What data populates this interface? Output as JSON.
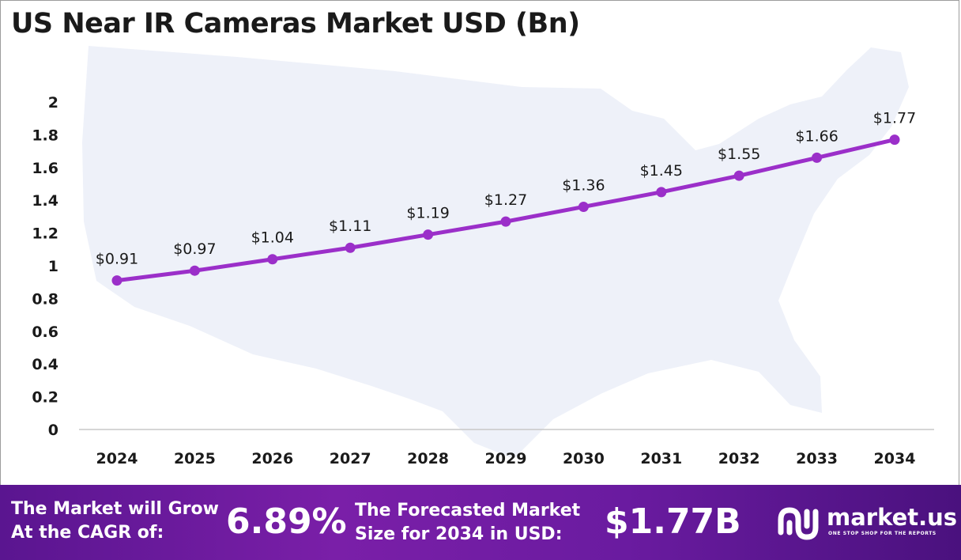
{
  "chart_data": {
    "type": "line",
    "title": "US Near IR Cameras Market USD (Bn)",
    "x": [
      "2024",
      "2025",
      "2026",
      "2027",
      "2028",
      "2029",
      "2030",
      "2031",
      "2032",
      "2033",
      "2034"
    ],
    "series": [
      {
        "values": [
          0.91,
          0.97,
          1.04,
          1.11,
          1.19,
          1.27,
          1.36,
          1.45,
          1.55,
          1.66,
          1.77
        ],
        "data_labels": [
          "$0.91",
          "$0.97",
          "$1.04",
          "$1.11",
          "$1.19",
          "$1.27",
          "$1.36",
          "$1.45",
          "$1.55",
          "$1.66",
          "$1.77"
        ],
        "color": "#9b2fc9"
      }
    ],
    "ylim": [
      0,
      2
    ],
    "yticks": [
      "0",
      "0.2",
      "0.4",
      "0.6",
      "0.8",
      "1",
      "1.2",
      "1.4",
      "1.6",
      "1.8",
      "2"
    ],
    "grid": false,
    "background": "faint US map silhouette"
  },
  "footer": {
    "cagr_text_line1": "The Market will Grow",
    "cagr_text_line2": "At the CAGR of:",
    "cagr_value": "6.89%",
    "forecast_text_line1": "The Forecasted Market",
    "forecast_text_line2": "Size for 2034 in USD:",
    "forecast_value": "$1.77B",
    "brand_name": "market.us",
    "brand_tagline": "ONE STOP SHOP FOR THE REPORTS",
    "brand_logo_icon": "market-us-logo-icon"
  },
  "colors": {
    "line": "#9b2fc9",
    "footer_bg": "#6a1ba0",
    "map": "#eef1f9"
  }
}
